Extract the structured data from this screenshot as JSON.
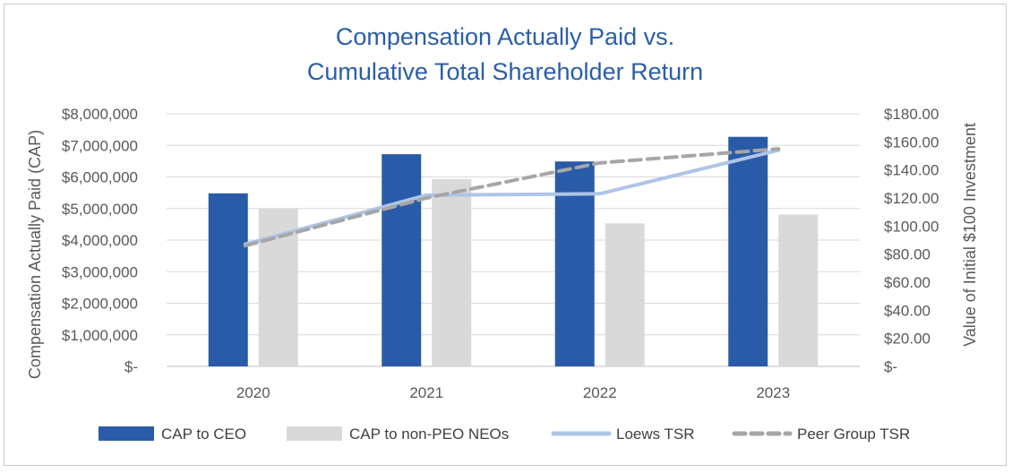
{
  "chart_data": {
    "type": "bar",
    "title": [
      "Compensation Actually Paid vs.",
      "Cumulative Total Shareholder Return"
    ],
    "categories": [
      "2020",
      "2021",
      "2022",
      "2023"
    ],
    "ylabel": "Compensation Actually Paid (CAP)",
    "y2label": "Value of Initial $100 Investment",
    "ylim": [
      0,
      8000000
    ],
    "y2lim": [
      0,
      180
    ],
    "yticks": [
      "$-",
      "$1,000,000",
      "$2,000,000",
      "$3,000,000",
      "$4,000,000",
      "$5,000,000",
      "$6,000,000",
      "$7,000,000",
      "$8,000,000"
    ],
    "y2ticks": [
      "$-",
      "$20.00",
      "$40.00",
      "$60.00",
      "$80.00",
      "$100.00",
      "$120.00",
      "$140.00",
      "$160.00",
      "$180.00"
    ],
    "grid": true,
    "legend_position": "bottom",
    "series": [
      {
        "name": "CAP to CEO",
        "kind": "bar",
        "axis": "left",
        "color": "#2a5ba8",
        "values": [
          5480000,
          6720000,
          6490000,
          7270000
        ]
      },
      {
        "name": "CAP to non-PEO NEOs",
        "kind": "bar",
        "axis": "left",
        "color": "#d9d9d9",
        "values": [
          4990000,
          5930000,
          4530000,
          4810000
        ]
      },
      {
        "name": "Loews TSR",
        "kind": "line",
        "axis": "right",
        "color": "#aec5e8",
        "dashed": false,
        "values": [
          87,
          122,
          123,
          154
        ]
      },
      {
        "name": "Peer Group TSR",
        "kind": "line",
        "axis": "right",
        "color": "#a6a6a6",
        "dashed": true,
        "values": [
          86,
          120,
          145,
          155
        ]
      }
    ]
  }
}
